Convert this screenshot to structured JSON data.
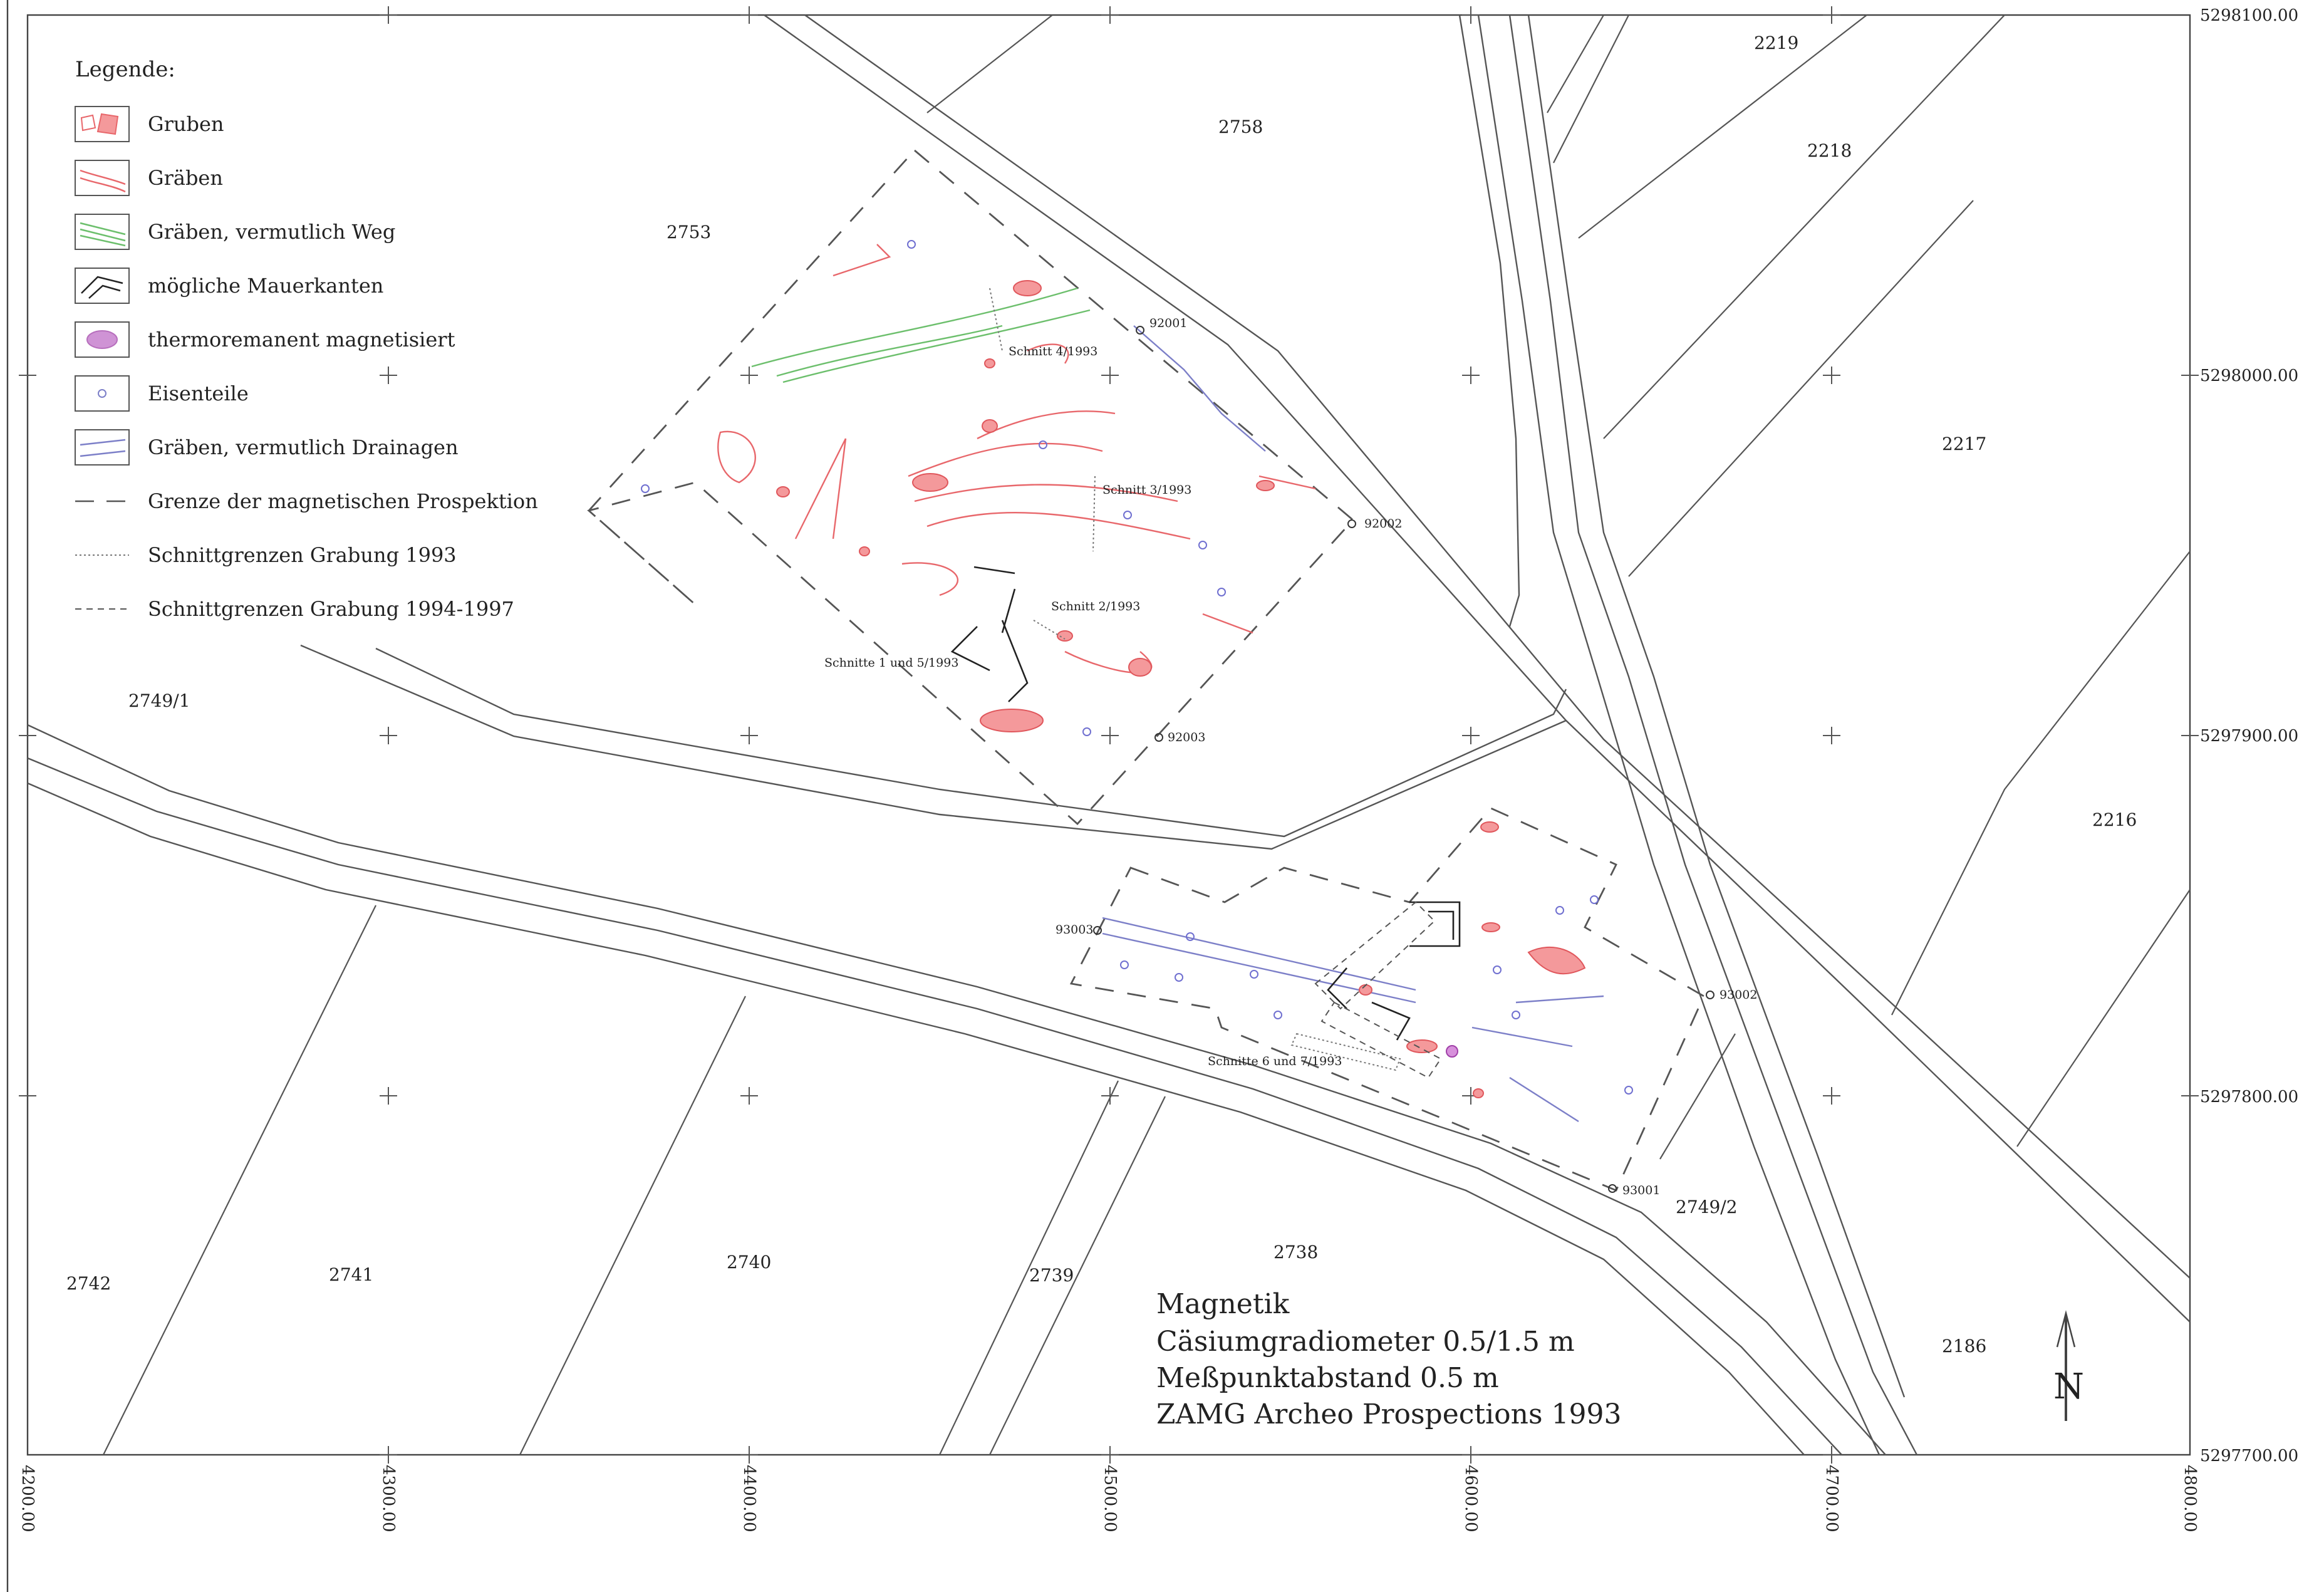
{
  "legend": {
    "title": "Legende:",
    "items": [
      {
        "key": "pits",
        "label": "Gruben",
        "icon": "pit-icon"
      },
      {
        "key": "ditches",
        "label": "Gräben",
        "icon": "ditch-icon"
      },
      {
        "key": "ditches-path",
        "label": "Gräben, vermutlich Weg",
        "icon": "path-ditch-icon"
      },
      {
        "key": "walls",
        "label": "mögliche Mauerkanten",
        "icon": "wall-edge-icon"
      },
      {
        "key": "thermo",
        "label": "thermoremanent magnetisiert",
        "icon": "thermo-icon"
      },
      {
        "key": "iron",
        "label": "Eisenteile",
        "icon": "iron-icon"
      },
      {
        "key": "drainage",
        "label": "Gräben, vermutlich Drainagen",
        "icon": "drainage-icon"
      },
      {
        "key": "boundary",
        "label": "Grenze der magnetischen Prospektion",
        "icon": "boundary-icon"
      },
      {
        "key": "cut1993",
        "label": "Schnittgrenzen Grabung 1993",
        "icon": "cut-1993-icon"
      },
      {
        "key": "cut1994",
        "label": "Schnittgrenzen Grabung 1994-1997",
        "icon": "cut-1994-icon"
      }
    ]
  },
  "colors": {
    "pits": "#f4999b",
    "ditches": "#e8676b",
    "path": "#6cbf6c",
    "drainage": "#7c7fc8",
    "thermo": "#c070c8",
    "lines": "#555555"
  },
  "parcels": [
    "2219",
    "2758",
    "2218",
    "2753",
    "2217",
    "2749/1",
    "2216",
    "2749/2",
    "2742",
    "2741",
    "2740",
    "2739",
    "2738",
    "2186"
  ],
  "points": [
    "92001",
    "92002",
    "92003",
    "93003",
    "93002",
    "93001"
  ],
  "cuts": [
    "Schnitt 4/1993",
    "Schnitt 3/1993",
    "Schnitt 2/1993",
    "Schnitte 1 und 5/1993",
    "Schnitte 6 und 7/1993"
  ],
  "axes": {
    "y_labels": [
      "5298100.00",
      "5298000.00",
      "5297900.00",
      "5297800.00",
      "5297700.00"
    ],
    "x_labels": [
      "4200.00",
      "4300.00",
      "4400.00",
      "4500.00",
      "4600.00",
      "4700.00",
      "4800.00"
    ]
  },
  "info": {
    "line1": "Magnetik",
    "line2": "Cäsiumgradiometer 0.5/1.5 m",
    "line3": "Meßpunktabstand 0.5 m",
    "line4": "ZAMG Archeo Prospections 1993"
  },
  "north_label": "N"
}
